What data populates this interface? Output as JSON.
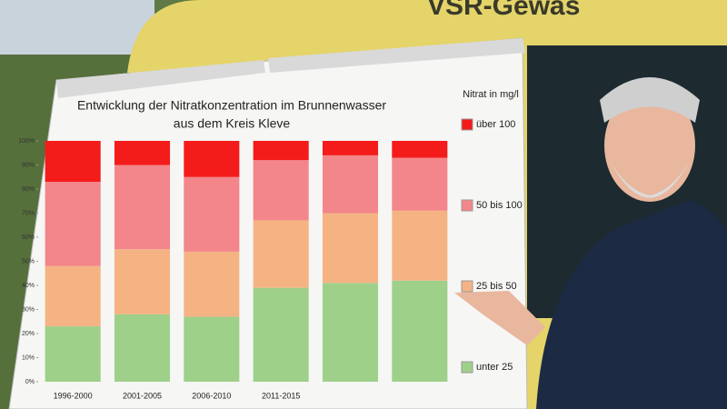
{
  "chart_data": {
    "type": "stacked_bar_100",
    "title": "Entwicklung der Nitratkonzentration im Brunnenwasser",
    "subtitle": "aus dem Kreis Kleve",
    "legend_title": "Nitrat in mg/l",
    "categories": [
      "1996-2000",
      "2001-2005",
      "2006-2010",
      "2011-2015",
      null,
      null
    ],
    "series": [
      {
        "name": "unter 25",
        "color": "#9fd08a",
        "values": [
          23,
          28,
          27,
          39,
          41,
          42
        ]
      },
      {
        "name": "25 bis 50",
        "color": "#f5b384",
        "values": [
          25,
          27,
          27,
          28,
          29,
          29
        ]
      },
      {
        "name": "50 bis 100",
        "color": "#f3868a",
        "values": [
          35,
          35,
          31,
          25,
          24,
          22
        ]
      },
      {
        "name": "über 100",
        "color": "#f41b1b",
        "values": [
          17,
          10,
          15,
          8,
          6,
          7
        ]
      }
    ],
    "ylim": [
      0,
      100
    ],
    "yticks": [
      {
        "value": 0,
        "label": "0%"
      },
      {
        "value": 10,
        "label": "10%"
      },
      {
        "value": 20,
        "label": "20%"
      },
      {
        "value": 30,
        "label": "30%"
      },
      {
        "value": 40,
        "label": "40%"
      },
      {
        "value": 50,
        "label": "50%"
      },
      {
        "value": 60,
        "label": "60%"
      },
      {
        "value": 70,
        "label": "70%"
      },
      {
        "value": 80,
        "label": "80%"
      },
      {
        "value": 90,
        "label": "90%"
      },
      {
        "value": 100,
        "label": "100%"
      }
    ],
    "legend": "right"
  },
  "photo": {
    "van_lettering": "VSR-Gewäs"
  }
}
